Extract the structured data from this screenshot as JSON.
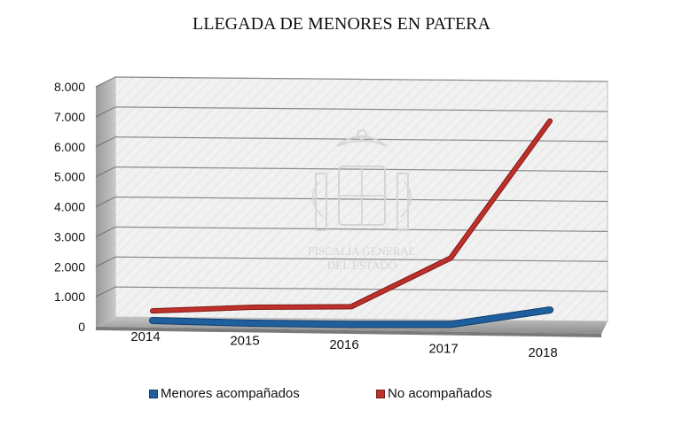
{
  "chart_data": {
    "type": "line",
    "title": "LLEGADA DE MENORES EN PATERA",
    "categories": [
      "2014",
      "2015",
      "2016",
      "2017",
      "2018"
    ],
    "series": [
      {
        "name": "Menores acompañados",
        "color": "#1f5f9e",
        "values": [
          130,
          70,
          60,
          90,
          600
        ]
      },
      {
        "name": "No acompañados",
        "color": "#c0302a",
        "values": [
          450,
          600,
          650,
          2300,
          6900
        ]
      }
    ],
    "yticks": [
      "0",
      "1.000",
      "2.000",
      "3.000",
      "4.000",
      "5.000",
      "6.000",
      "7.000",
      "8.000"
    ],
    "ylim": [
      0,
      8000
    ],
    "grid": true,
    "legend_position": "bottom",
    "style": "3d"
  },
  "watermark": {
    "line1": "FISCALÍA GENERAL",
    "line2": "DEL ESTADO"
  }
}
